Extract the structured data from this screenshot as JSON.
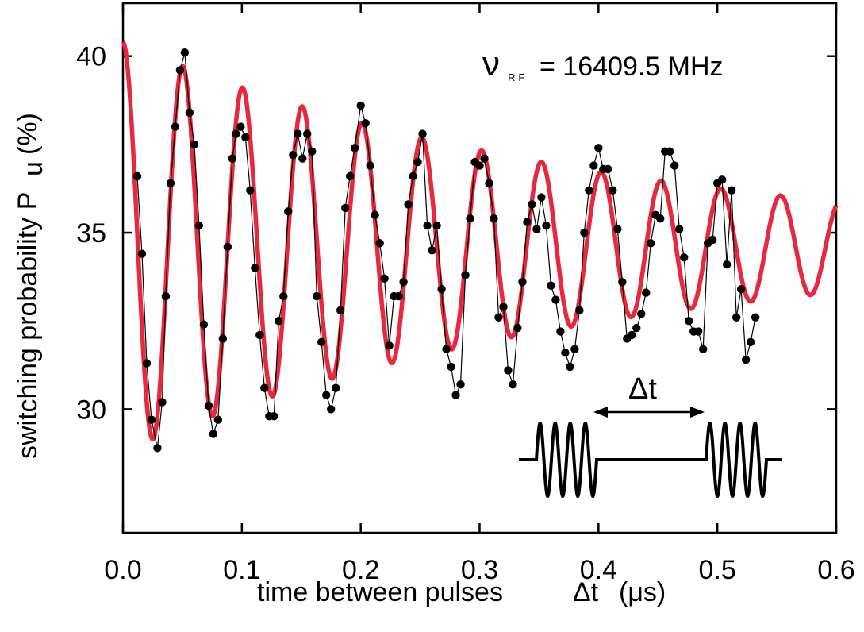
{
  "chart_data": {
    "type": "scatter",
    "xlabel_main": "time between pulses",
    "xlabel_symbol": "Δt",
    "xlabel_unit": "(μs)",
    "ylabel_main": "switching probability P",
    "ylabel_sub": "u",
    "ylabel_unit": "(%)",
    "xlim": [
      0.0,
      0.6
    ],
    "ylim": [
      26.5,
      41.5
    ],
    "x_ticks": [
      {
        "value": 0.0,
        "label": "0.0"
      },
      {
        "value": 0.1,
        "label": "0.1"
      },
      {
        "value": 0.2,
        "label": "0.2"
      },
      {
        "value": 0.3,
        "label": "0.3"
      },
      {
        "value": 0.4,
        "label": "0.4"
      },
      {
        "value": 0.5,
        "label": "0.5"
      },
      {
        "value": 0.6,
        "label": "0.6"
      }
    ],
    "y_ticks": [
      {
        "value": 30,
        "label": "30"
      },
      {
        "value": 35,
        "label": "35"
      },
      {
        "value": 40,
        "label": "40"
      }
    ],
    "annotation": {
      "symbol": "ν",
      "subscript": "RF",
      "text": "= 16409.5 MHz"
    },
    "inset": {
      "label": "Δt"
    },
    "fit_curve": {
      "color": "#e8283c",
      "offset": 34.6,
      "amplitude": 5.8,
      "decay_us": 0.4,
      "period_us": 0.0503,
      "phase_rad": 0.0,
      "x_start": 0.0,
      "x_end": 0.6
    },
    "series": [
      {
        "color": "#000000",
        "points": [
          [
            0.012,
            36.6
          ],
          [
            0.016,
            34.4
          ],
          [
            0.02,
            31.3
          ],
          [
            0.024,
            29.7
          ],
          [
            0.029,
            28.9
          ],
          [
            0.033,
            30.2
          ],
          [
            0.036,
            33.2
          ],
          [
            0.04,
            36.4
          ],
          [
            0.044,
            38.0
          ],
          [
            0.048,
            39.6
          ],
          [
            0.052,
            40.1
          ],
          [
            0.056,
            38.4
          ],
          [
            0.06,
            37.5
          ],
          [
            0.064,
            35.2
          ],
          [
            0.068,
            32.4
          ],
          [
            0.072,
            30.1
          ],
          [
            0.076,
            29.3
          ],
          [
            0.08,
            29.7
          ],
          [
            0.084,
            32.0
          ],
          [
            0.088,
            34.6
          ],
          [
            0.092,
            37.1
          ],
          [
            0.095,
            37.8
          ],
          [
            0.099,
            38.0
          ],
          [
            0.103,
            37.7
          ],
          [
            0.107,
            36.2
          ],
          [
            0.111,
            34.0
          ],
          [
            0.115,
            32.1
          ],
          [
            0.119,
            30.6
          ],
          [
            0.123,
            29.8
          ],
          [
            0.127,
            29.8
          ],
          [
            0.131,
            32.5
          ],
          [
            0.135,
            33.2
          ],
          [
            0.139,
            35.6
          ],
          [
            0.143,
            37.2
          ],
          [
            0.147,
            37.8
          ],
          [
            0.151,
            37.1
          ],
          [
            0.155,
            37.8
          ],
          [
            0.159,
            37.3
          ],
          [
            0.163,
            33.2
          ],
          [
            0.167,
            31.9
          ],
          [
            0.171,
            30.4
          ],
          [
            0.175,
            30.0
          ],
          [
            0.179,
            30.6
          ],
          [
            0.183,
            32.8
          ],
          [
            0.187,
            35.7
          ],
          [
            0.191,
            36.6
          ],
          [
            0.195,
            37.4
          ],
          [
            0.2,
            38.6
          ],
          [
            0.204,
            38.1
          ],
          [
            0.208,
            36.9
          ],
          [
            0.212,
            35.5
          ],
          [
            0.216,
            34.7
          ],
          [
            0.22,
            33.7
          ],
          [
            0.224,
            31.8
          ],
          [
            0.228,
            33.2
          ],
          [
            0.232,
            33.2
          ],
          [
            0.236,
            33.6
          ],
          [
            0.24,
            35.8
          ],
          [
            0.244,
            36.6
          ],
          [
            0.248,
            37.0
          ],
          [
            0.252,
            37.8
          ],
          [
            0.256,
            35.2
          ],
          [
            0.26,
            34.5
          ],
          [
            0.264,
            35.2
          ],
          [
            0.268,
            33.4
          ],
          [
            0.272,
            31.7
          ],
          [
            0.276,
            31.2
          ],
          [
            0.28,
            30.4
          ],
          [
            0.284,
            30.7
          ],
          [
            0.288,
            33.8
          ],
          [
            0.292,
            35.4
          ],
          [
            0.296,
            37.0
          ],
          [
            0.3,
            36.9
          ],
          [
            0.304,
            37.1
          ],
          [
            0.308,
            36.4
          ],
          [
            0.312,
            35.4
          ],
          [
            0.316,
            32.6
          ],
          [
            0.32,
            32.9
          ],
          [
            0.324,
            31.1
          ],
          [
            0.328,
            30.7
          ],
          [
            0.332,
            32.3
          ],
          [
            0.336,
            33.6
          ],
          [
            0.34,
            35.3
          ],
          [
            0.344,
            35.8
          ],
          [
            0.348,
            35.1
          ],
          [
            0.352,
            36.0
          ],
          [
            0.356,
            35.2
          ],
          [
            0.36,
            33.5
          ],
          [
            0.364,
            33.1
          ],
          [
            0.368,
            32.2
          ],
          [
            0.372,
            31.6
          ],
          [
            0.376,
            31.2
          ],
          [
            0.38,
            31.7
          ],
          [
            0.384,
            32.8
          ],
          [
            0.388,
            35.0
          ],
          [
            0.392,
            36.2
          ],
          [
            0.396,
            36.9
          ],
          [
            0.4,
            37.4
          ],
          [
            0.404,
            36.8
          ],
          [
            0.408,
            36.8
          ],
          [
            0.412,
            36.2
          ],
          [
            0.416,
            35.1
          ],
          [
            0.42,
            33.6
          ],
          [
            0.424,
            32.0
          ],
          [
            0.428,
            32.1
          ],
          [
            0.432,
            32.3
          ],
          [
            0.436,
            32.7
          ],
          [
            0.44,
            33.3
          ],
          [
            0.444,
            34.7
          ],
          [
            0.448,
            35.5
          ],
          [
            0.452,
            35.4
          ],
          [
            0.456,
            37.3
          ],
          [
            0.46,
            37.3
          ],
          [
            0.464,
            36.9
          ],
          [
            0.468,
            35.1
          ],
          [
            0.472,
            34.3
          ],
          [
            0.476,
            32.5
          ],
          [
            0.48,
            32.2
          ],
          [
            0.484,
            32.2
          ],
          [
            0.488,
            31.7
          ],
          [
            0.492,
            34.7
          ],
          [
            0.496,
            34.8
          ],
          [
            0.5,
            36.4
          ],
          [
            0.504,
            36.5
          ],
          [
            0.508,
            34.1
          ],
          [
            0.512,
            36.2
          ],
          [
            0.516,
            32.6
          ],
          [
            0.52,
            33.4
          ],
          [
            0.524,
            31.4
          ],
          [
            0.528,
            31.9
          ],
          [
            0.532,
            32.6
          ]
        ]
      }
    ]
  }
}
